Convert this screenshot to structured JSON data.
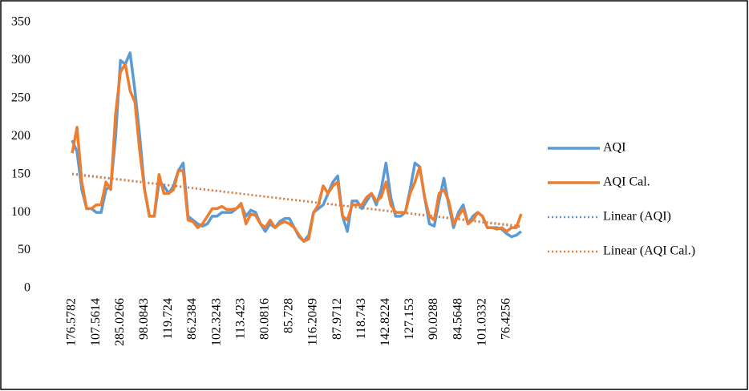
{
  "chart_data": {
    "type": "line",
    "categories": [
      "176.5782",
      null,
      null,
      null,
      null,
      "107.5614",
      null,
      null,
      null,
      null,
      "285.0266",
      null,
      null,
      null,
      null,
      "98.0843",
      null,
      null,
      null,
      null,
      "119.724",
      null,
      null,
      null,
      null,
      "86.2384",
      null,
      null,
      null,
      null,
      "102.3243",
      null,
      null,
      null,
      null,
      "113.423",
      null,
      null,
      null,
      null,
      "80.0816",
      null,
      null,
      null,
      null,
      "85.728",
      null,
      null,
      null,
      null,
      "116.2049",
      null,
      null,
      null,
      null,
      "87.9712",
      null,
      null,
      null,
      null,
      "118.743",
      null,
      null,
      null,
      null,
      "142.8224",
      null,
      null,
      null,
      null,
      "127.153",
      null,
      null,
      null,
      null,
      "90.0288",
      null,
      null,
      null,
      null,
      "84.5648",
      null,
      null,
      null,
      null,
      "101.0332",
      null,
      null,
      null,
      null,
      "76.4256",
      null,
      null,
      null
    ],
    "series": [
      {
        "name": "AQI",
        "color": "#5b9bd5",
        "values": [
          195,
          180,
          130,
          105,
          105,
          100,
          100,
          130,
          135,
          200,
          300,
          295,
          310,
          260,
          200,
          130,
          95,
          95,
          140,
          135,
          125,
          135,
          155,
          165,
          95,
          90,
          85,
          82,
          85,
          95,
          95,
          100,
          100,
          100,
          105,
          110,
          95,
          103,
          100,
          85,
          75,
          85,
          80,
          88,
          92,
          92,
          80,
          68,
          62,
          70,
          100,
          105,
          110,
          125,
          140,
          148,
          95,
          75,
          115,
          115,
          105,
          115,
          125,
          110,
          130,
          165,
          120,
          95,
          95,
          100,
          130,
          165,
          160,
          120,
          85,
          82,
          115,
          145,
          110,
          80,
          100,
          110,
          85,
          95,
          100,
          95,
          80,
          80,
          80,
          78,
          72,
          68,
          70,
          75
        ]
      },
      {
        "name": "AQI Cal.",
        "color": "#ed7d31",
        "values": [
          178,
          212,
          140,
          105,
          105,
          110,
          110,
          140,
          130,
          230,
          285,
          295,
          260,
          245,
          180,
          130,
          95,
          95,
          150,
          125,
          125,
          130,
          155,
          155,
          90,
          88,
          80,
          85,
          95,
          105,
          105,
          108,
          104,
          104,
          105,
          112,
          85,
          98,
          96,
          85,
          80,
          90,
          80,
          85,
          88,
          85,
          80,
          70,
          62,
          65,
          100,
          110,
          135,
          125,
          135,
          140,
          95,
          90,
          110,
          110,
          110,
          120,
          125,
          115,
          120,
          140,
          110,
          100,
          100,
          100,
          125,
          140,
          160,
          120,
          95,
          90,
          125,
          130,
          115,
          85,
          95,
          105,
          85,
          90,
          100,
          95,
          80,
          80,
          78,
          80,
          75,
          80,
          80,
          98
        ]
      }
    ],
    "trendlines": [
      {
        "name": "Linear (AQI)",
        "of": 0,
        "color": "#5b9bd5"
      },
      {
        "name": "Linear (AQI Cal.)",
        "of": 1,
        "color": "#ed7d31"
      }
    ],
    "ylim": [
      0,
      350
    ],
    "yticks": [
      0,
      50,
      100,
      150,
      200,
      250,
      300,
      350
    ],
    "grid": false
  }
}
